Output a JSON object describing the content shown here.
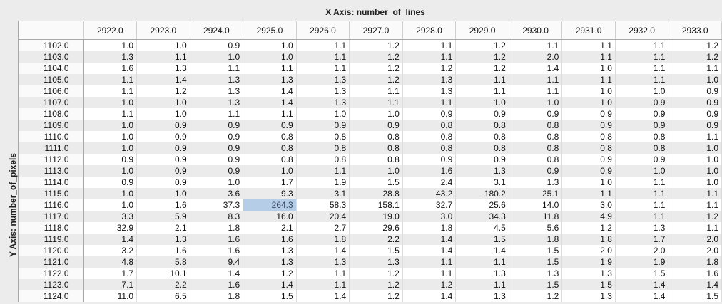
{
  "x_axis_title": "X Axis: number_of_lines",
  "y_axis_title": "Y Axis: number_of_pixels",
  "columns": [
    "2922.0",
    "2923.0",
    "2924.0",
    "2925.0",
    "2926.0",
    "2927.0",
    "2928.0",
    "2929.0",
    "2930.0",
    "2931.0",
    "2932.0",
    "2933.0"
  ],
  "selected_cell": {
    "row": 14,
    "col": 3
  },
  "rows": [
    {
      "label": "1102.0",
      "values": [
        "1.0",
        "1.0",
        "0.9",
        "1.0",
        "1.1",
        "1.2",
        "1.1",
        "1.2",
        "1.1",
        "1.1",
        "1.1",
        "1.2"
      ]
    },
    {
      "label": "1103.0",
      "values": [
        "1.3",
        "1.1",
        "1.0",
        "1.0",
        "1.1",
        "1.2",
        "1.1",
        "1.2",
        "2.0",
        "1.1",
        "1.1",
        "1.2"
      ]
    },
    {
      "label": "1104.0",
      "values": [
        "1.6",
        "1.3",
        "1.1",
        "1.1",
        "1.1",
        "1.2",
        "1.2",
        "1.2",
        "1.4",
        "1.0",
        "1.1",
        "1.1"
      ]
    },
    {
      "label": "1105.0",
      "values": [
        "1.1",
        "1.4",
        "1.3",
        "1.3",
        "1.3",
        "1.2",
        "1.3",
        "1.1",
        "1.1",
        "1.1",
        "1.1",
        "1.0"
      ]
    },
    {
      "label": "1106.0",
      "values": [
        "1.1",
        "1.2",
        "1.3",
        "1.4",
        "1.3",
        "1.1",
        "1.3",
        "1.1",
        "1.1",
        "1.0",
        "1.0",
        "0.9"
      ]
    },
    {
      "label": "1107.0",
      "values": [
        "1.0",
        "1.0",
        "1.3",
        "1.4",
        "1.3",
        "1.1",
        "1.1",
        "1.0",
        "1.0",
        "1.0",
        "0.9",
        "0.9"
      ]
    },
    {
      "label": "1108.0",
      "values": [
        "1.1",
        "1.0",
        "1.1",
        "1.1",
        "1.0",
        "1.0",
        "0.9",
        "0.9",
        "0.9",
        "0.9",
        "0.9",
        "0.9"
      ]
    },
    {
      "label": "1109.0",
      "values": [
        "1.0",
        "0.9",
        "0.9",
        "0.9",
        "0.9",
        "0.9",
        "0.8",
        "0.8",
        "0.8",
        "0.9",
        "0.9",
        "0.9"
      ]
    },
    {
      "label": "1110.0",
      "values": [
        "1.0",
        "0.9",
        "0.9",
        "0.8",
        "0.8",
        "0.8",
        "0.8",
        "0.8",
        "0.8",
        "0.8",
        "0.8",
        "1.1"
      ]
    },
    {
      "label": "1111.0",
      "values": [
        "1.0",
        "0.9",
        "0.9",
        "0.8",
        "0.8",
        "0.8",
        "0.8",
        "0.8",
        "0.8",
        "0.8",
        "0.8",
        "1.0"
      ]
    },
    {
      "label": "1112.0",
      "values": [
        "0.9",
        "0.9",
        "0.9",
        "0.8",
        "0.8",
        "0.8",
        "0.9",
        "0.9",
        "0.8",
        "0.9",
        "0.9",
        "1.0"
      ]
    },
    {
      "label": "1113.0",
      "values": [
        "1.0",
        "0.9",
        "0.9",
        "1.0",
        "1.1",
        "1.0",
        "1.6",
        "1.3",
        "0.9",
        "0.9",
        "1.0",
        "1.0"
      ]
    },
    {
      "label": "1114.0",
      "values": [
        "0.9",
        "0.9",
        "1.0",
        "1.7",
        "1.9",
        "1.5",
        "2.4",
        "3.1",
        "1.3",
        "1.0",
        "1.1",
        "1.0"
      ]
    },
    {
      "label": "1115.0",
      "values": [
        "1.0",
        "1.0",
        "3.6",
        "9.3",
        "3.1",
        "28.8",
        "43.2",
        "180.2",
        "25.1",
        "1.1",
        "1.1",
        "1.1"
      ]
    },
    {
      "label": "1116.0",
      "values": [
        "1.0",
        "1.6",
        "37.3",
        "264.3",
        "58.3",
        "158.1",
        "32.7",
        "25.6",
        "14.0",
        "3.0",
        "1.1",
        "1.1"
      ]
    },
    {
      "label": "1117.0",
      "values": [
        "3.3",
        "5.9",
        "8.3",
        "16.0",
        "20.4",
        "19.0",
        "3.0",
        "34.3",
        "11.8",
        "4.9",
        "1.1",
        "1.2"
      ]
    },
    {
      "label": "1118.0",
      "values": [
        "32.9",
        "2.1",
        "1.8",
        "2.1",
        "2.7",
        "29.6",
        "1.8",
        "4.5",
        "5.6",
        "1.2",
        "1.3",
        "1.1"
      ]
    },
    {
      "label": "1119.0",
      "values": [
        "1.4",
        "1.3",
        "1.6",
        "1.6",
        "1.8",
        "2.2",
        "1.4",
        "1.5",
        "1.8",
        "1.8",
        "1.7",
        "2.0"
      ]
    },
    {
      "label": "1120.0",
      "values": [
        "3.2",
        "1.6",
        "1.6",
        "1.3",
        "1.4",
        "1.5",
        "1.4",
        "1.4",
        "1.5",
        "2.0",
        "2.0",
        "2.0"
      ]
    },
    {
      "label": "1121.0",
      "values": [
        "4.8",
        "5.8",
        "9.4",
        "1.3",
        "1.3",
        "1.3",
        "1.1",
        "1.1",
        "1.5",
        "1.9",
        "1.9",
        "1.8"
      ]
    },
    {
      "label": "1122.0",
      "values": [
        "1.7",
        "10.1",
        "1.4",
        "1.2",
        "1.1",
        "1.2",
        "1.1",
        "1.3",
        "1.3",
        "1.3",
        "1.5",
        "1.6"
      ]
    },
    {
      "label": "1123.0",
      "values": [
        "7.1",
        "2.2",
        "1.6",
        "1.4",
        "1.1",
        "1.2",
        "1.2",
        "1.1",
        "1.5",
        "1.5",
        "1.4",
        "1.4"
      ]
    },
    {
      "label": "1124.0",
      "values": [
        "11.0",
        "6.5",
        "1.8",
        "1.5",
        "1.4",
        "1.2",
        "1.4",
        "1.3",
        "1.2",
        "1.3",
        "1.4",
        "1.5"
      ]
    }
  ]
}
